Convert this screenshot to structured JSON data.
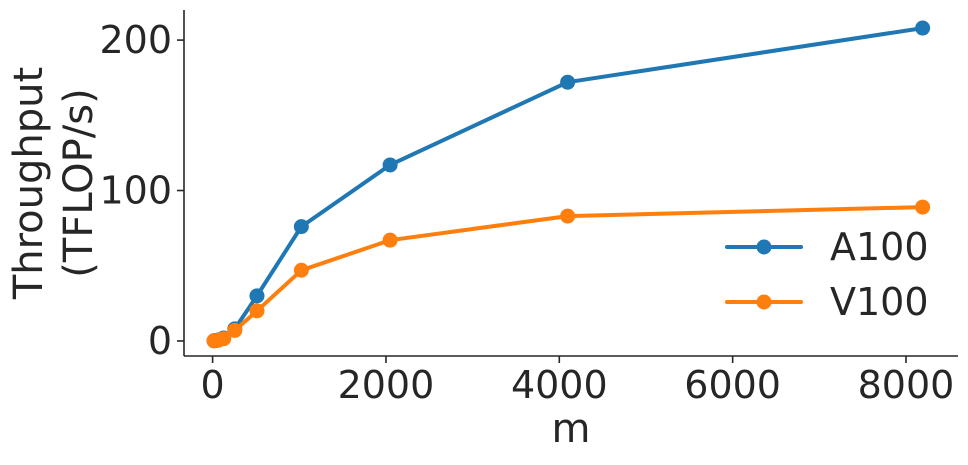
{
  "chart_data": {
    "type": "line",
    "title": "",
    "xlabel": "m",
    "ylabel_lines": [
      "Throughput",
      "(TFLOP/s)"
    ],
    "xlim": [
      -330,
      8600
    ],
    "ylim": [
      -10,
      220
    ],
    "xticks": [
      0,
      2000,
      4000,
      6000,
      8000
    ],
    "xtick_labels": [
      "0",
      "2000",
      "4000",
      "6000",
      "8000"
    ],
    "yticks": [
      0,
      100,
      200
    ],
    "ytick_labels": [
      "0",
      "100",
      "200"
    ],
    "grid": false,
    "legend_position": "lower-right",
    "series": [
      {
        "name": "A100",
        "color": "#1f77b4",
        "x": [
          16,
          32,
          64,
          128,
          256,
          512,
          1024,
          2048,
          4096,
          8192
        ],
        "y": [
          0.1,
          0.3,
          0.6,
          2,
          8,
          30,
          76,
          117,
          172,
          208
        ]
      },
      {
        "name": "V100",
        "color": "#ff7f0e",
        "x": [
          16,
          32,
          64,
          128,
          256,
          512,
          1024,
          2048,
          4096,
          8192
        ],
        "y": [
          0.1,
          0.2,
          0.4,
          1.5,
          7,
          20,
          47,
          67,
          83,
          89
        ]
      }
    ]
  }
}
